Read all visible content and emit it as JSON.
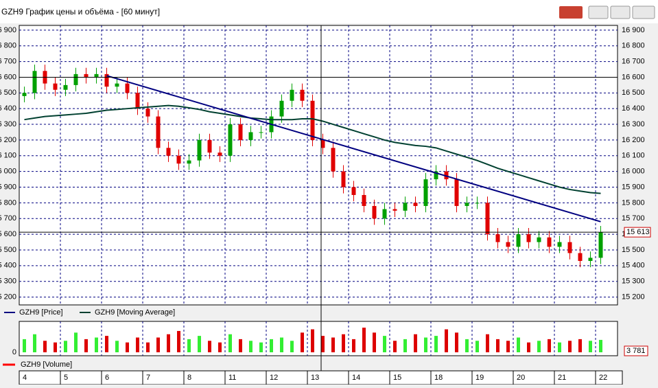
{
  "window_title": "GZH9 График цены и объёма - [60 минут]",
  "chart_data": {
    "type": "candlestick",
    "days": [
      "4",
      "5",
      "6",
      "7",
      "8",
      "11",
      "12",
      "13",
      "14",
      "15",
      "18",
      "19",
      "20",
      "21",
      "22"
    ],
    "candles_per_day": 4,
    "open": [
      16480,
      16500,
      16640,
      16560,
      16520,
      16550,
      16620,
      16600,
      16620,
      16540,
      16560,
      16500,
      16400,
      16350,
      16150,
      16100,
      16050,
      16070,
      16200,
      16120,
      16100,
      16300,
      16200,
      16250,
      16250,
      16350,
      16450,
      16520,
      16450,
      16200,
      16150,
      16000,
      15900,
      15850,
      15780,
      15700,
      15760,
      15750,
      15800,
      15780,
      15950,
      16000,
      15950,
      15780,
      15800,
      15800,
      15600,
      15550,
      15520,
      15600,
      15550,
      15580,
      15520,
      15550,
      15480,
      15430,
      15450
    ],
    "high": [
      16540,
      16680,
      16680,
      16600,
      16590,
      16660,
      16660,
      16660,
      16660,
      16600,
      16600,
      16540,
      16440,
      16390,
      16190,
      16140,
      16110,
      16240,
      16240,
      16160,
      16340,
      16340,
      16290,
      16290,
      16390,
      16490,
      16560,
      16560,
      16490,
      16240,
      16190,
      16040,
      15940,
      15890,
      15820,
      15800,
      15800,
      15840,
      15840,
      15990,
      16040,
      16040,
      15990,
      15840,
      15840,
      15840,
      15640,
      15590,
      15640,
      15640,
      15620,
      15620,
      15590,
      15590,
      15520,
      15490,
      15653
    ],
    "low": [
      16440,
      16460,
      16520,
      16480,
      16480,
      16510,
      16560,
      16560,
      16500,
      16500,
      16460,
      16360,
      16310,
      16110,
      16060,
      16010,
      16010,
      16030,
      16080,
      16060,
      16060,
      16160,
      16160,
      16210,
      16210,
      16310,
      16410,
      16410,
      16160,
      16110,
      15960,
      15860,
      15810,
      15740,
      15660,
      15660,
      15710,
      15710,
      15740,
      15740,
      15910,
      15910,
      15740,
      15740,
      15760,
      15560,
      15510,
      15480,
      15480,
      15510,
      15510,
      15480,
      15480,
      15440,
      15390,
      15390,
      15410
    ],
    "close": [
      16500,
      16640,
      16560,
      16520,
      16550,
      16620,
      16600,
      16620,
      16540,
      16560,
      16500,
      16400,
      16350,
      16150,
      16100,
      16050,
      16070,
      16200,
      16120,
      16100,
      16300,
      16200,
      16250,
      16250,
      16350,
      16450,
      16520,
      16450,
      16200,
      16150,
      16000,
      15900,
      15850,
      15780,
      15700,
      15760,
      15750,
      15800,
      15780,
      15950,
      16000,
      15950,
      15780,
      15800,
      15800,
      15600,
      15550,
      15520,
      15600,
      15550,
      15580,
      15520,
      15550,
      15480,
      15430,
      15450,
      15613
    ],
    "moving_average": [
      16330,
      16340,
      16350,
      16355,
      16360,
      16365,
      16370,
      16380,
      16390,
      16395,
      16400,
      16405,
      16410,
      16415,
      16420,
      16415,
      16405,
      16395,
      16380,
      16370,
      16360,
      16350,
      16340,
      16335,
      16330,
      16330,
      16330,
      16335,
      16335,
      16320,
      16300,
      16280,
      16260,
      16240,
      16220,
      16200,
      16185,
      16175,
      16165,
      16160,
      16150,
      16130,
      16110,
      16090,
      16070,
      16045,
      16020,
      16000,
      15980,
      15960,
      15940,
      15920,
      15900,
      15885,
      15875,
      15865,
      15860
    ],
    "trendline": {
      "start_index": 8,
      "start": 16610,
      "end_index": 56,
      "end": 15680
    },
    "level": 16600,
    "current_price": 15613,
    "current_price_label": "15 613",
    "up_color": "#00a000",
    "down_color": "#e00000",
    "ma_color": "#004030",
    "trend_color": "#000080",
    "ylim": [
      15150,
      16930
    ],
    "yticks": [
      {
        "value": 16900,
        "label": "16 900"
      },
      {
        "value": 16800,
        "label": "16 800"
      },
      {
        "value": 16700,
        "label": "16 700"
      },
      {
        "value": 16600,
        "label": "16 600"
      },
      {
        "value": 16500,
        "label": "16 500"
      },
      {
        "value": 16400,
        "label": "16 400"
      },
      {
        "value": 16300,
        "label": "16 300"
      },
      {
        "value": 16200,
        "label": "16 200"
      },
      {
        "value": 16100,
        "label": "16 100"
      },
      {
        "value": 16000,
        "label": "16 000"
      },
      {
        "value": 15900,
        "label": "15 900"
      },
      {
        "value": 15800,
        "label": "15 800"
      },
      {
        "value": 15700,
        "label": "15 700"
      },
      {
        "value": 15600,
        "label": "15 600"
      },
      {
        "value": 15500,
        "label": "15 500"
      },
      {
        "value": 15400,
        "label": "15 400"
      },
      {
        "value": 15300,
        "label": "15 300"
      },
      {
        "value": 15200,
        "label": "15 200"
      }
    ],
    "legend": [
      "GZH9 [Price]",
      "GZH9 [Moving Average]"
    ],
    "volume": {
      "name": "GZH9 [Volume]",
      "up_color": "#33ee33",
      "down_color": "#dd0000",
      "legend_color": "#ff0000",
      "values": [
        4000,
        5500,
        3500,
        3000,
        3500,
        6000,
        4000,
        4500,
        5000,
        3500,
        3000,
        4500,
        3000,
        4500,
        5500,
        6500,
        4000,
        5000,
        3500,
        3000,
        5500,
        4000,
        3500,
        3000,
        4000,
        4500,
        3500,
        6000,
        7000,
        5000,
        4500,
        5500,
        4000,
        7500,
        6000,
        5000,
        3500,
        4000,
        5500,
        4500,
        5000,
        7000,
        6000,
        4000,
        3500,
        5500,
        4000,
        3500,
        4500,
        3000,
        3500,
        4000,
        3000,
        3500,
        4000,
        3500,
        3781
      ],
      "last_value_label": "3 781",
      "ylim": [
        0,
        9000
      ],
      "yticks": [
        0
      ]
    }
  }
}
